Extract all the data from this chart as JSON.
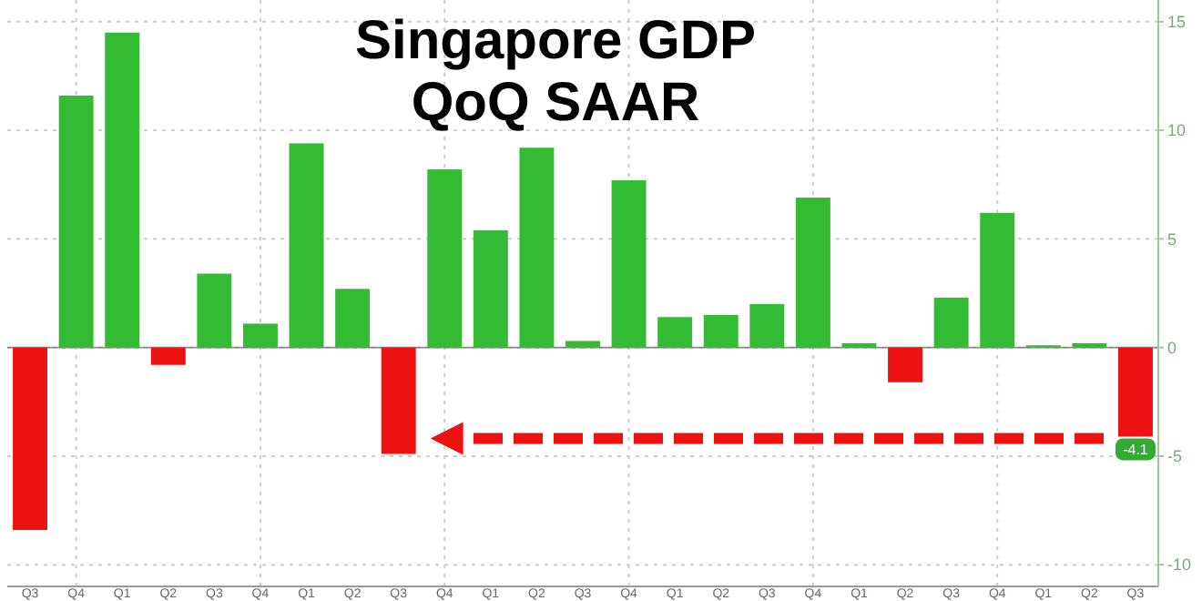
{
  "chart_data": {
    "type": "bar",
    "title": "Singapore GDP\nQoQ SAAR",
    "categories": [
      "Q3",
      "Q4",
      "Q1",
      "Q2",
      "Q3",
      "Q4",
      "Q1",
      "Q2",
      "Q3",
      "Q4",
      "Q1",
      "Q2",
      "Q3",
      "Q4",
      "Q1",
      "Q2",
      "Q3",
      "Q4",
      "Q1",
      "Q2",
      "Q3",
      "Q4",
      "Q1",
      "Q2",
      "Q3"
    ],
    "values": [
      -8.4,
      11.6,
      14.5,
      -0.8,
      3.4,
      1.1,
      9.4,
      2.7,
      -4.9,
      8.2,
      5.4,
      9.2,
      0.3,
      7.7,
      1.4,
      1.5,
      2.0,
      6.9,
      0.2,
      -1.6,
      2.3,
      6.2,
      0.1,
      0.2,
      -4.1
    ],
    "colors": [
      "#ee1111",
      "#33bb33",
      "#33bb33",
      "#ee1111",
      "#33bb33",
      "#33bb33",
      "#33bb33",
      "#33bb33",
      "#ee1111",
      "#33bb33",
      "#33bb33",
      "#33bb33",
      "#33bb33",
      "#33bb33",
      "#33bb33",
      "#33bb33",
      "#33bb33",
      "#33bb33",
      "#33bb33",
      "#ee1111",
      "#33bb33",
      "#33bb33",
      "#33bb33",
      "#33bb33",
      "#ee1111"
    ],
    "value_labels": [
      null,
      null,
      null,
      null,
      null,
      null,
      null,
      null,
      null,
      null,
      null,
      null,
      null,
      null,
      null,
      null,
      null,
      null,
      null,
      null,
      null,
      null,
      null,
      null,
      "-4.1"
    ],
    "ylim": [
      -11,
      16
    ],
    "yticks": [
      -10,
      -5,
      0,
      5,
      10,
      15
    ],
    "grid": true
  }
}
